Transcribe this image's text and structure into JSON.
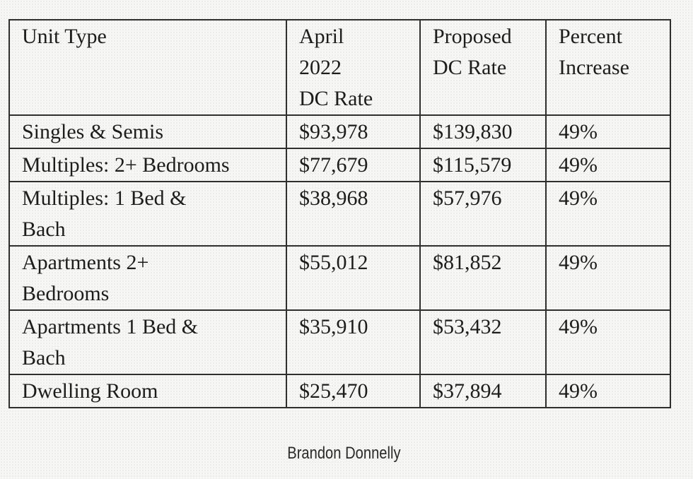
{
  "page": {
    "background_color": "#f6f6f4",
    "border_color": "#2f2f2f",
    "text_color": "#1d1d1b"
  },
  "table": {
    "headers": {
      "unit_type": "Unit Type",
      "april_2022_dc_rate": "April\n2022\nDC Rate",
      "proposed_dc_rate": "Proposed\nDC Rate",
      "percent_increase": "Percent\nIncrease"
    },
    "rows": [
      {
        "unit_type": "Singles & Semis",
        "april_2022_dc_rate": "$93,978",
        "proposed_dc_rate": "$139,830",
        "percent_increase": "49%"
      },
      {
        "unit_type": "Multiples: 2+ Bedrooms",
        "april_2022_dc_rate": "$77,679",
        "proposed_dc_rate": "$115,579",
        "percent_increase": "49%"
      },
      {
        "unit_type": "Multiples: 1 Bed &\nBach",
        "april_2022_dc_rate": "$38,968",
        "proposed_dc_rate": "$57,976",
        "percent_increase": "49%"
      },
      {
        "unit_type": "Apartments 2+\nBedrooms",
        "april_2022_dc_rate": "$55,012",
        "proposed_dc_rate": "$81,852",
        "percent_increase": "49%"
      },
      {
        "unit_type": "Apartments 1 Bed &\nBach",
        "april_2022_dc_rate": "$35,910",
        "proposed_dc_rate": "$53,432",
        "percent_increase": "49%"
      },
      {
        "unit_type": "Dwelling Room",
        "april_2022_dc_rate": "$25,470",
        "proposed_dc_rate": "$37,894",
        "percent_increase": "49%"
      }
    ]
  },
  "caption": {
    "text": "Brandon Donnelly"
  }
}
